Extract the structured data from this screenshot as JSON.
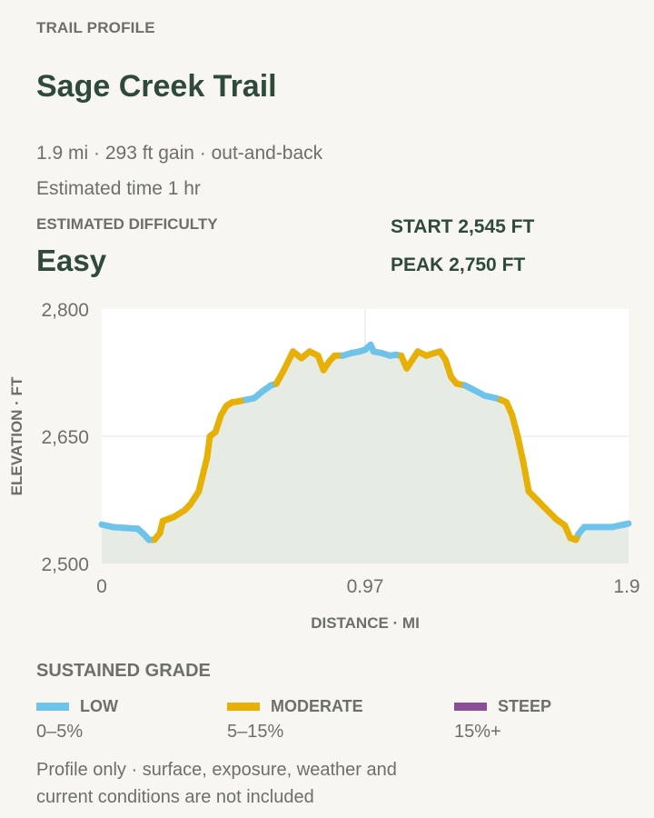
{
  "header": {
    "eyebrow": "TRAIL PROFILE",
    "title": "Sage Creek Trail",
    "meta_line1": "1.9 mi · 293 ft gain · out-and-back",
    "meta_line2": "Estimated time 1 hr"
  },
  "difficulty": {
    "label": "ESTIMATED DIFFICULTY",
    "value": "Easy"
  },
  "stats": {
    "start": "START 2,545 FT",
    "peak": "PEAK 2,750 FT"
  },
  "chart_data": {
    "type": "area",
    "xlabel": "DISTANCE · MI",
    "ylabel": "ELEVATION · FT",
    "xlim": [
      0,
      1.9
    ],
    "ylim": [
      2500,
      2800
    ],
    "x_ticks": [
      "0",
      "0.97",
      "1.9"
    ],
    "y_ticks": [
      "2,800",
      "2,650",
      "2,500"
    ],
    "grid": true,
    "fill_color": "#e6ebe3",
    "grade_colors": {
      "low": "#6ec3ea",
      "moderate": "#e7b006",
      "steep": "#8b4f97"
    },
    "points": [
      [
        0.0,
        2546,
        "low"
      ],
      [
        0.04,
        2543,
        "low"
      ],
      [
        0.08,
        2542,
        "low"
      ],
      [
        0.13,
        2541,
        "low"
      ],
      [
        0.15,
        2535,
        "low"
      ],
      [
        0.17,
        2528,
        "low"
      ],
      [
        0.19,
        2528,
        "moderate"
      ],
      [
        0.21,
        2536,
        "moderate"
      ],
      [
        0.22,
        2550,
        "moderate"
      ],
      [
        0.26,
        2555,
        "moderate"
      ],
      [
        0.3,
        2563,
        "moderate"
      ],
      [
        0.32,
        2570,
        "moderate"
      ],
      [
        0.35,
        2585,
        "moderate"
      ],
      [
        0.38,
        2625,
        "moderate"
      ],
      [
        0.39,
        2650,
        "moderate"
      ],
      [
        0.41,
        2655,
        "moderate"
      ],
      [
        0.43,
        2675,
        "moderate"
      ],
      [
        0.45,
        2686,
        "moderate"
      ],
      [
        0.47,
        2690,
        "moderate"
      ],
      [
        0.49,
        2691,
        "moderate"
      ],
      [
        0.52,
        2693,
        "low"
      ],
      [
        0.55,
        2695,
        "low"
      ],
      [
        0.58,
        2703,
        "low"
      ],
      [
        0.61,
        2710,
        "low"
      ],
      [
        0.63,
        2712,
        "moderate"
      ],
      [
        0.66,
        2730,
        "moderate"
      ],
      [
        0.69,
        2750,
        "moderate"
      ],
      [
        0.72,
        2742,
        "moderate"
      ],
      [
        0.75,
        2750,
        "moderate"
      ],
      [
        0.78,
        2745,
        "moderate"
      ],
      [
        0.8,
        2728,
        "moderate"
      ],
      [
        0.82,
        2738,
        "moderate"
      ],
      [
        0.84,
        2745,
        "moderate"
      ],
      [
        0.87,
        2745,
        "low"
      ],
      [
        0.9,
        2748,
        "low"
      ],
      [
        0.93,
        2750,
        "low"
      ],
      [
        0.95,
        2752,
        "low"
      ],
      [
        0.97,
        2758,
        "low"
      ],
      [
        0.98,
        2750,
        "low"
      ],
      [
        1.01,
        2748,
        "low"
      ],
      [
        1.04,
        2745,
        "low"
      ],
      [
        1.06,
        2746,
        "low"
      ],
      [
        1.08,
        2745,
        "moderate"
      ],
      [
        1.1,
        2730,
        "moderate"
      ],
      [
        1.12,
        2740,
        "moderate"
      ],
      [
        1.14,
        2750,
        "moderate"
      ],
      [
        1.17,
        2745,
        "moderate"
      ],
      [
        1.2,
        2748,
        "moderate"
      ],
      [
        1.22,
        2750,
        "moderate"
      ],
      [
        1.24,
        2740,
        "moderate"
      ],
      [
        1.26,
        2720,
        "moderate"
      ],
      [
        1.28,
        2712,
        "moderate"
      ],
      [
        1.31,
        2710,
        "low"
      ],
      [
        1.34,
        2705,
        "low"
      ],
      [
        1.38,
        2698,
        "low"
      ],
      [
        1.42,
        2695,
        "low"
      ],
      [
        1.44,
        2693,
        "moderate"
      ],
      [
        1.46,
        2690,
        "moderate"
      ],
      [
        1.48,
        2675,
        "moderate"
      ],
      [
        1.5,
        2650,
        "moderate"
      ],
      [
        1.52,
        2620,
        "moderate"
      ],
      [
        1.54,
        2585,
        "moderate"
      ],
      [
        1.57,
        2575,
        "moderate"
      ],
      [
        1.6,
        2565,
        "moderate"
      ],
      [
        1.64,
        2552,
        "moderate"
      ],
      [
        1.67,
        2545,
        "moderate"
      ],
      [
        1.69,
        2530,
        "moderate"
      ],
      [
        1.71,
        2528,
        "moderate"
      ],
      [
        1.72,
        2535,
        "low"
      ],
      [
        1.74,
        2543,
        "low"
      ],
      [
        1.78,
        2543,
        "low"
      ],
      [
        1.84,
        2543,
        "low"
      ],
      [
        1.9,
        2547,
        "low"
      ]
    ]
  },
  "legend": {
    "title": "SUSTAINED GRADE",
    "items": [
      {
        "name": "LOW",
        "range": "0–5%",
        "color": "#6ec3ea"
      },
      {
        "name": "MODERATE",
        "range": "5–15%",
        "color": "#e7b006"
      },
      {
        "name": "STEEP",
        "range": "15%+",
        "color": "#8b4f97"
      }
    ]
  },
  "footnote": "Profile only · surface, exposure, weather and current conditions are not included"
}
